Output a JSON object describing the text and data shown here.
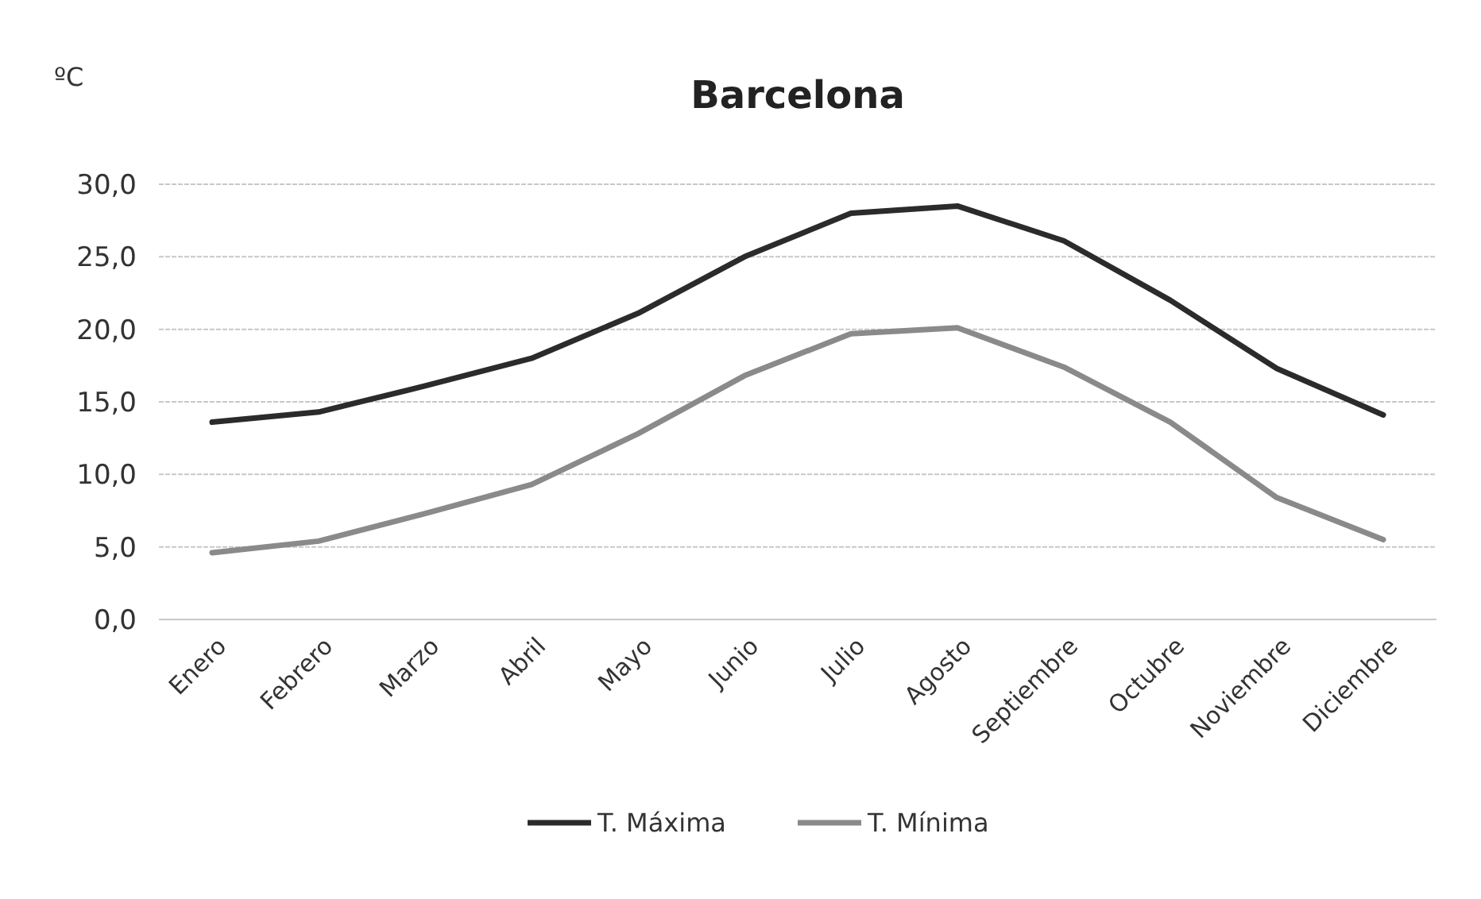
{
  "chart_data": {
    "type": "line",
    "title": "Barcelona",
    "ylabel": "ºC",
    "categories": [
      "Enero",
      "Febrero",
      "Marzo",
      "Abril",
      "Mayo",
      "Junio",
      "Julio",
      "Agosto",
      "Septiembre",
      "Octubre",
      "Noviembre",
      "Diciembre"
    ],
    "series": [
      {
        "name": "T. Máxima",
        "color": "#2b2b2b",
        "values": [
          13.6,
          14.3,
          16.1,
          18.0,
          21.1,
          25.0,
          28.0,
          28.5,
          26.1,
          22.0,
          17.3,
          14.1
        ]
      },
      {
        "name": "T. Mínima",
        "color": "#8a8a8a",
        "values": [
          4.6,
          5.4,
          7.3,
          9.3,
          12.8,
          16.8,
          19.7,
          20.1,
          17.4,
          13.6,
          8.4,
          5.5
        ]
      }
    ],
    "ylim": [
      0,
      30
    ],
    "yticks": [
      {
        "value": 0,
        "label": "0,0"
      },
      {
        "value": 5,
        "label": "5,0"
      },
      {
        "value": 10,
        "label": "10,0"
      },
      {
        "value": 15,
        "label": "15,0"
      },
      {
        "value": 20,
        "label": "20,0"
      },
      {
        "value": 25,
        "label": "25,0"
      },
      {
        "value": 30,
        "label": "30,0"
      }
    ],
    "grid": "y",
    "legend": "bottom",
    "marker": "none",
    "line_style": "solid"
  }
}
